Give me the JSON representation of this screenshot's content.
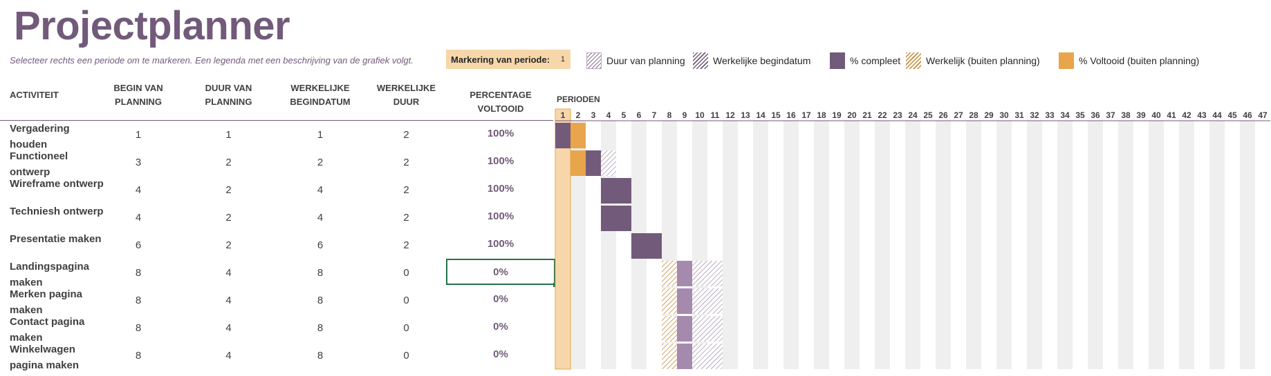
{
  "title": "Projectplanner",
  "subtitle": "Selecteer rechts een periode om te markeren. Een legenda met een beschrijving van de grafiek volgt.",
  "highlight": {
    "label": "Markering van periode:",
    "value": "1"
  },
  "legend": [
    {
      "label": "Duur van planning",
      "swatch": "plan"
    },
    {
      "label": "Werkelijke begindatum",
      "swatch": "actual"
    },
    {
      "label": "% compleet",
      "swatch": "complete"
    },
    {
      "label": "Werkelijk (buiten planning)",
      "swatch": "beyond"
    },
    {
      "label": "% Voltooid (buiten planning)",
      "swatch": "pctbeyond"
    }
  ],
  "headers": {
    "activity": "ACTIVITEIT",
    "plan_start": "BEGIN VAN PLANNING",
    "plan_duration": "DUUR VAN PLANNING",
    "actual_start": "WERKELIJKE BEGINDATUM",
    "actual_duration": "WERKELIJKE DUUR",
    "percent": "PERCENTAGE VOLTOOID",
    "periods": "PERIODEN"
  },
  "periods_count": 47,
  "highlighted_period": 1,
  "colors": {
    "accent": "#725a7a",
    "orange": "#e8a54b",
    "highlight_col": "#f7d7aa",
    "stripe_bg": "#efefef",
    "selection": "#217346"
  },
  "activities": [
    {
      "name": "Vergadering houden",
      "plan_start": 1,
      "plan_duration": 1,
      "actual_start": 1,
      "actual_duration": 2,
      "percent": "100%"
    },
    {
      "name": "Functioneel ontwerp",
      "plan_start": 3,
      "plan_duration": 2,
      "actual_start": 2,
      "actual_duration": 2,
      "percent": "100%"
    },
    {
      "name": "Wireframe ontwerp",
      "plan_start": 4,
      "plan_duration": 2,
      "actual_start": 4,
      "actual_duration": 2,
      "percent": "100%"
    },
    {
      "name": "Techniesh ontwerp",
      "plan_start": 4,
      "plan_duration": 2,
      "actual_start": 4,
      "actual_duration": 2,
      "percent": "100%"
    },
    {
      "name": "Presentatie maken",
      "plan_start": 6,
      "plan_duration": 2,
      "actual_start": 6,
      "actual_duration": 2,
      "percent": "100%"
    },
    {
      "name": "Landingspagina maken",
      "plan_start": 8,
      "plan_duration": 4,
      "actual_start": 8,
      "actual_duration": 0,
      "percent": "0%"
    },
    {
      "name": "Merken pagina maken",
      "plan_start": 8,
      "plan_duration": 4,
      "actual_start": 8,
      "actual_duration": 0,
      "percent": "0%"
    },
    {
      "name": "Contact pagina maken",
      "plan_start": 8,
      "plan_duration": 4,
      "actual_start": 8,
      "actual_duration": 0,
      "percent": "0%"
    },
    {
      "name": "Winkelwagen pagina maken",
      "plan_start": 8,
      "plan_duration": 4,
      "actual_start": 8,
      "actual_duration": 0,
      "percent": "0%"
    }
  ]
}
